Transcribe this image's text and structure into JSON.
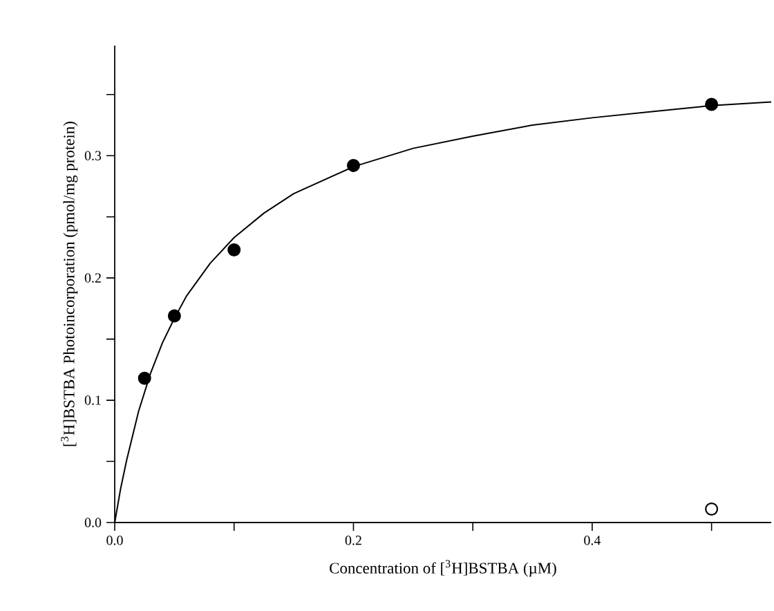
{
  "chart_data": {
    "type": "scatter",
    "xlabel": "Concentration of [$^{3}$H]BSTBA  (µM)",
    "ylabel": "[$^{3}$H]BSTBA Photoincorporation  (pmol/mg protein)",
    "xlim": [
      0,
      0.55
    ],
    "ylim": [
      0,
      0.39
    ],
    "xticks": [
      {
        "value": 0,
        "label": "0.0"
      },
      {
        "value": 0.1,
        "label": null
      },
      0.2,
      {
        "value": 0.3,
        "label": null
      },
      0.4,
      {
        "value": 0.5,
        "label": null
      }
    ],
    "yticks": [
      {
        "value": 0,
        "label": "0.0"
      },
      {
        "value": 0.05,
        "label": null
      },
      0.1,
      {
        "value": 0.15,
        "label": null
      },
      0.2,
      {
        "value": 0.25,
        "label": null
      },
      0.3,
      {
        "value": 0.35,
        "label": null
      }
    ],
    "grid": false,
    "series": [
      {
        "type": "line",
        "marker": "none",
        "color": "#000000",
        "x": [
          0,
          0.005,
          0.01,
          0.02,
          0.03,
          0.04,
          0.05,
          0.06,
          0.08,
          0.1,
          0.125,
          0.15,
          0.2,
          0.25,
          0.3,
          0.35,
          0.4,
          0.45,
          0.5,
          0.55
        ],
        "values": [
          0,
          0.028,
          0.051,
          0.091,
          0.122,
          0.147,
          0.167,
          0.185,
          0.212,
          0.233,
          0.253,
          0.269,
          0.291,
          0.306,
          0.316,
          0.325,
          0.331,
          0.336,
          0.341,
          0.344
        ]
      },
      {
        "marker": "circle",
        "color": "#000000",
        "x": [
          0.025,
          0.05,
          0.1,
          0.2,
          0.5
        ],
        "values": [
          0.118,
          0.169,
          0.223,
          0.292,
          0.342
        ]
      },
      {
        "marker": "circle",
        "color": "#ffffff",
        "x": [
          0.5
        ],
        "values": [
          0.011
        ]
      }
    ]
  }
}
